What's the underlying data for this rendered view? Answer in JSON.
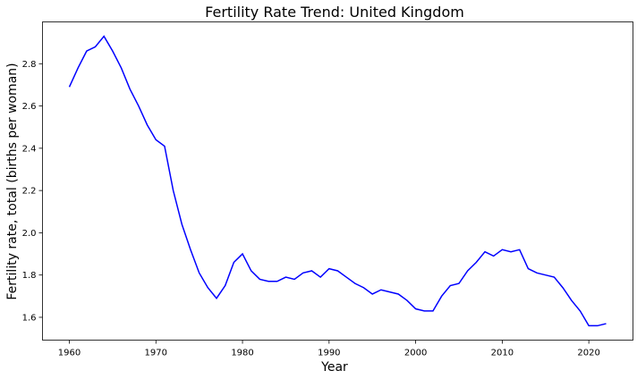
{
  "chart_data": {
    "type": "line",
    "title": "Fertility Rate Trend: United Kingdom",
    "xlabel": "Year",
    "ylabel": "Fertility rate, total (births per woman)",
    "xlim": [
      1956.9,
      2025.1
    ],
    "ylim": [
      1.492,
      2.998
    ],
    "xticks": [
      1960,
      1970,
      1980,
      1990,
      2000,
      2010,
      2020
    ],
    "yticks": [
      1.6,
      1.8,
      2.0,
      2.2,
      2.4,
      2.6,
      2.8
    ],
    "ytick_labels": [
      "1.6",
      "1.8",
      "2.0",
      "2.2",
      "2.4",
      "2.6",
      "2.8"
    ],
    "grid": false,
    "legend": "none",
    "series": [
      {
        "color": "#0000ff",
        "x": [
          1960,
          1961,
          1962,
          1963,
          1964,
          1965,
          1966,
          1967,
          1968,
          1969,
          1970,
          1971,
          1972,
          1973,
          1974,
          1975,
          1976,
          1977,
          1978,
          1979,
          1980,
          1981,
          1982,
          1983,
          1984,
          1985,
          1986,
          1987,
          1988,
          1989,
          1990,
          1991,
          1992,
          1993,
          1994,
          1995,
          1996,
          1997,
          1998,
          1999,
          2000,
          2001,
          2002,
          2003,
          2004,
          2005,
          2006,
          2007,
          2008,
          2009,
          2010,
          2011,
          2012,
          2013,
          2014,
          2015,
          2016,
          2017,
          2018,
          2019,
          2020,
          2021,
          2022
        ],
        "y": [
          2.69,
          2.78,
          2.86,
          2.88,
          2.93,
          2.86,
          2.78,
          2.68,
          2.6,
          2.51,
          2.44,
          2.41,
          2.2,
          2.04,
          1.92,
          1.81,
          1.74,
          1.69,
          1.75,
          1.86,
          1.9,
          1.82,
          1.78,
          1.77,
          1.77,
          1.79,
          1.78,
          1.81,
          1.82,
          1.79,
          1.83,
          1.82,
          1.79,
          1.76,
          1.74,
          1.71,
          1.73,
          1.72,
          1.71,
          1.68,
          1.64,
          1.63,
          1.63,
          1.7,
          1.75,
          1.76,
          1.82,
          1.86,
          1.91,
          1.89,
          1.92,
          1.91,
          1.92,
          1.83,
          1.81,
          1.8,
          1.79,
          1.74,
          1.68,
          1.63,
          1.56,
          1.56,
          1.57
        ]
      }
    ]
  }
}
